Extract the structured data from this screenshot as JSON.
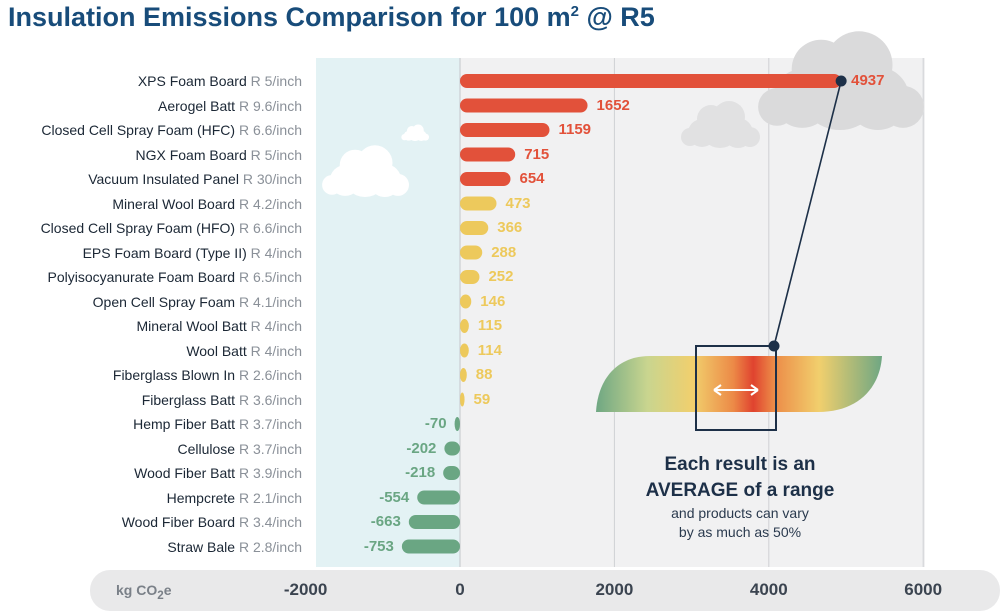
{
  "title": "Insulation Emissions Comparison for 100 m",
  "title_sup": "2",
  "title_suffix": " @ R5",
  "colors": {
    "high": "#e2513a",
    "mid": "#edc95c",
    "neg": "#6aa683",
    "band": "#e3f2f4",
    "axis_bg": "#e9e9ea"
  },
  "note": {
    "line1": "Each result is an",
    "line2": "AVERAGE of a range",
    "line3": "and products can vary",
    "line4": "by as much as 50%"
  },
  "chart_data": {
    "type": "bar",
    "orientation": "horizontal",
    "title": "Insulation Emissions Comparison for 100 m² @ R5",
    "xlabel": "kg CO2e",
    "xlabel_main": "kg CO",
    "xlabel_sub": "2",
    "xlabel_end": "e",
    "xlim": [
      -2000,
      6000
    ],
    "xticks": [
      "-2000",
      "0",
      "2000",
      "4000",
      "6000"
    ],
    "categories": [
      {
        "name": "XPS Foam Board",
        "r": "R 5/inch",
        "value": 4937,
        "label": "4937"
      },
      {
        "name": "Aerogel Batt",
        "r": "R 9.6/inch",
        "value": 1652,
        "label": "1652"
      },
      {
        "name": "Closed Cell Spray Foam (HFC)",
        "r": "R 6.6/inch",
        "value": 1159,
        "label": "1159"
      },
      {
        "name": "NGX Foam Board",
        "r": "R 5/inch",
        "value": 715,
        "label": "715"
      },
      {
        "name": "Vacuum Insulated Panel",
        "r": "R 30/inch",
        "value": 654,
        "label": "654"
      },
      {
        "name": "Mineral Wool Board",
        "r": "R 4.2/inch",
        "value": 473,
        "label": "473"
      },
      {
        "name": "Closed Cell Spray Foam (HFO)",
        "r": "R 6.6/inch",
        "value": 366,
        "label": "366"
      },
      {
        "name": "EPS Foam Board (Type II)",
        "r": "R 4/inch",
        "value": 288,
        "label": "288"
      },
      {
        "name": "Polyisocyanurate Foam Board",
        "r": "R 6.5/inch",
        "value": 252,
        "label": "252"
      },
      {
        "name": "Open Cell Spray Foam",
        "r": "R 4.1/inch",
        "value": 146,
        "label": "146"
      },
      {
        "name": "Mineral Wool Batt",
        "r": "R 4/inch",
        "value": 115,
        "label": "115"
      },
      {
        "name": "Wool Batt",
        "r": "R 4/inch",
        "value": 114,
        "label": "114"
      },
      {
        "name": "Fiberglass Blown In",
        "r": "R 2.6/inch",
        "value": 88,
        "label": "88"
      },
      {
        "name": "Fiberglass Batt",
        "r": "R 3.6/inch",
        "value": 59,
        "label": "59"
      },
      {
        "name": "Hemp Fiber Batt",
        "r": "R 3.7/inch",
        "value": -70,
        "label": "-70"
      },
      {
        "name": "Cellulose",
        "r": "R 3.7/inch",
        "value": -202,
        "label": "-202"
      },
      {
        "name": "Wood Fiber Batt",
        "r": "R 3.9/inch",
        "value": -218,
        "label": "-218"
      },
      {
        "name": "Hempcrete",
        "r": "R 2.1/inch",
        "value": -554,
        "label": "-554"
      },
      {
        "name": "Wood Fiber Board",
        "r": "R 3.4/inch",
        "value": -663,
        "label": "-663"
      },
      {
        "name": "Straw Bale",
        "r": "R 2.8/inch",
        "value": -753,
        "label": "-753"
      }
    ]
  }
}
